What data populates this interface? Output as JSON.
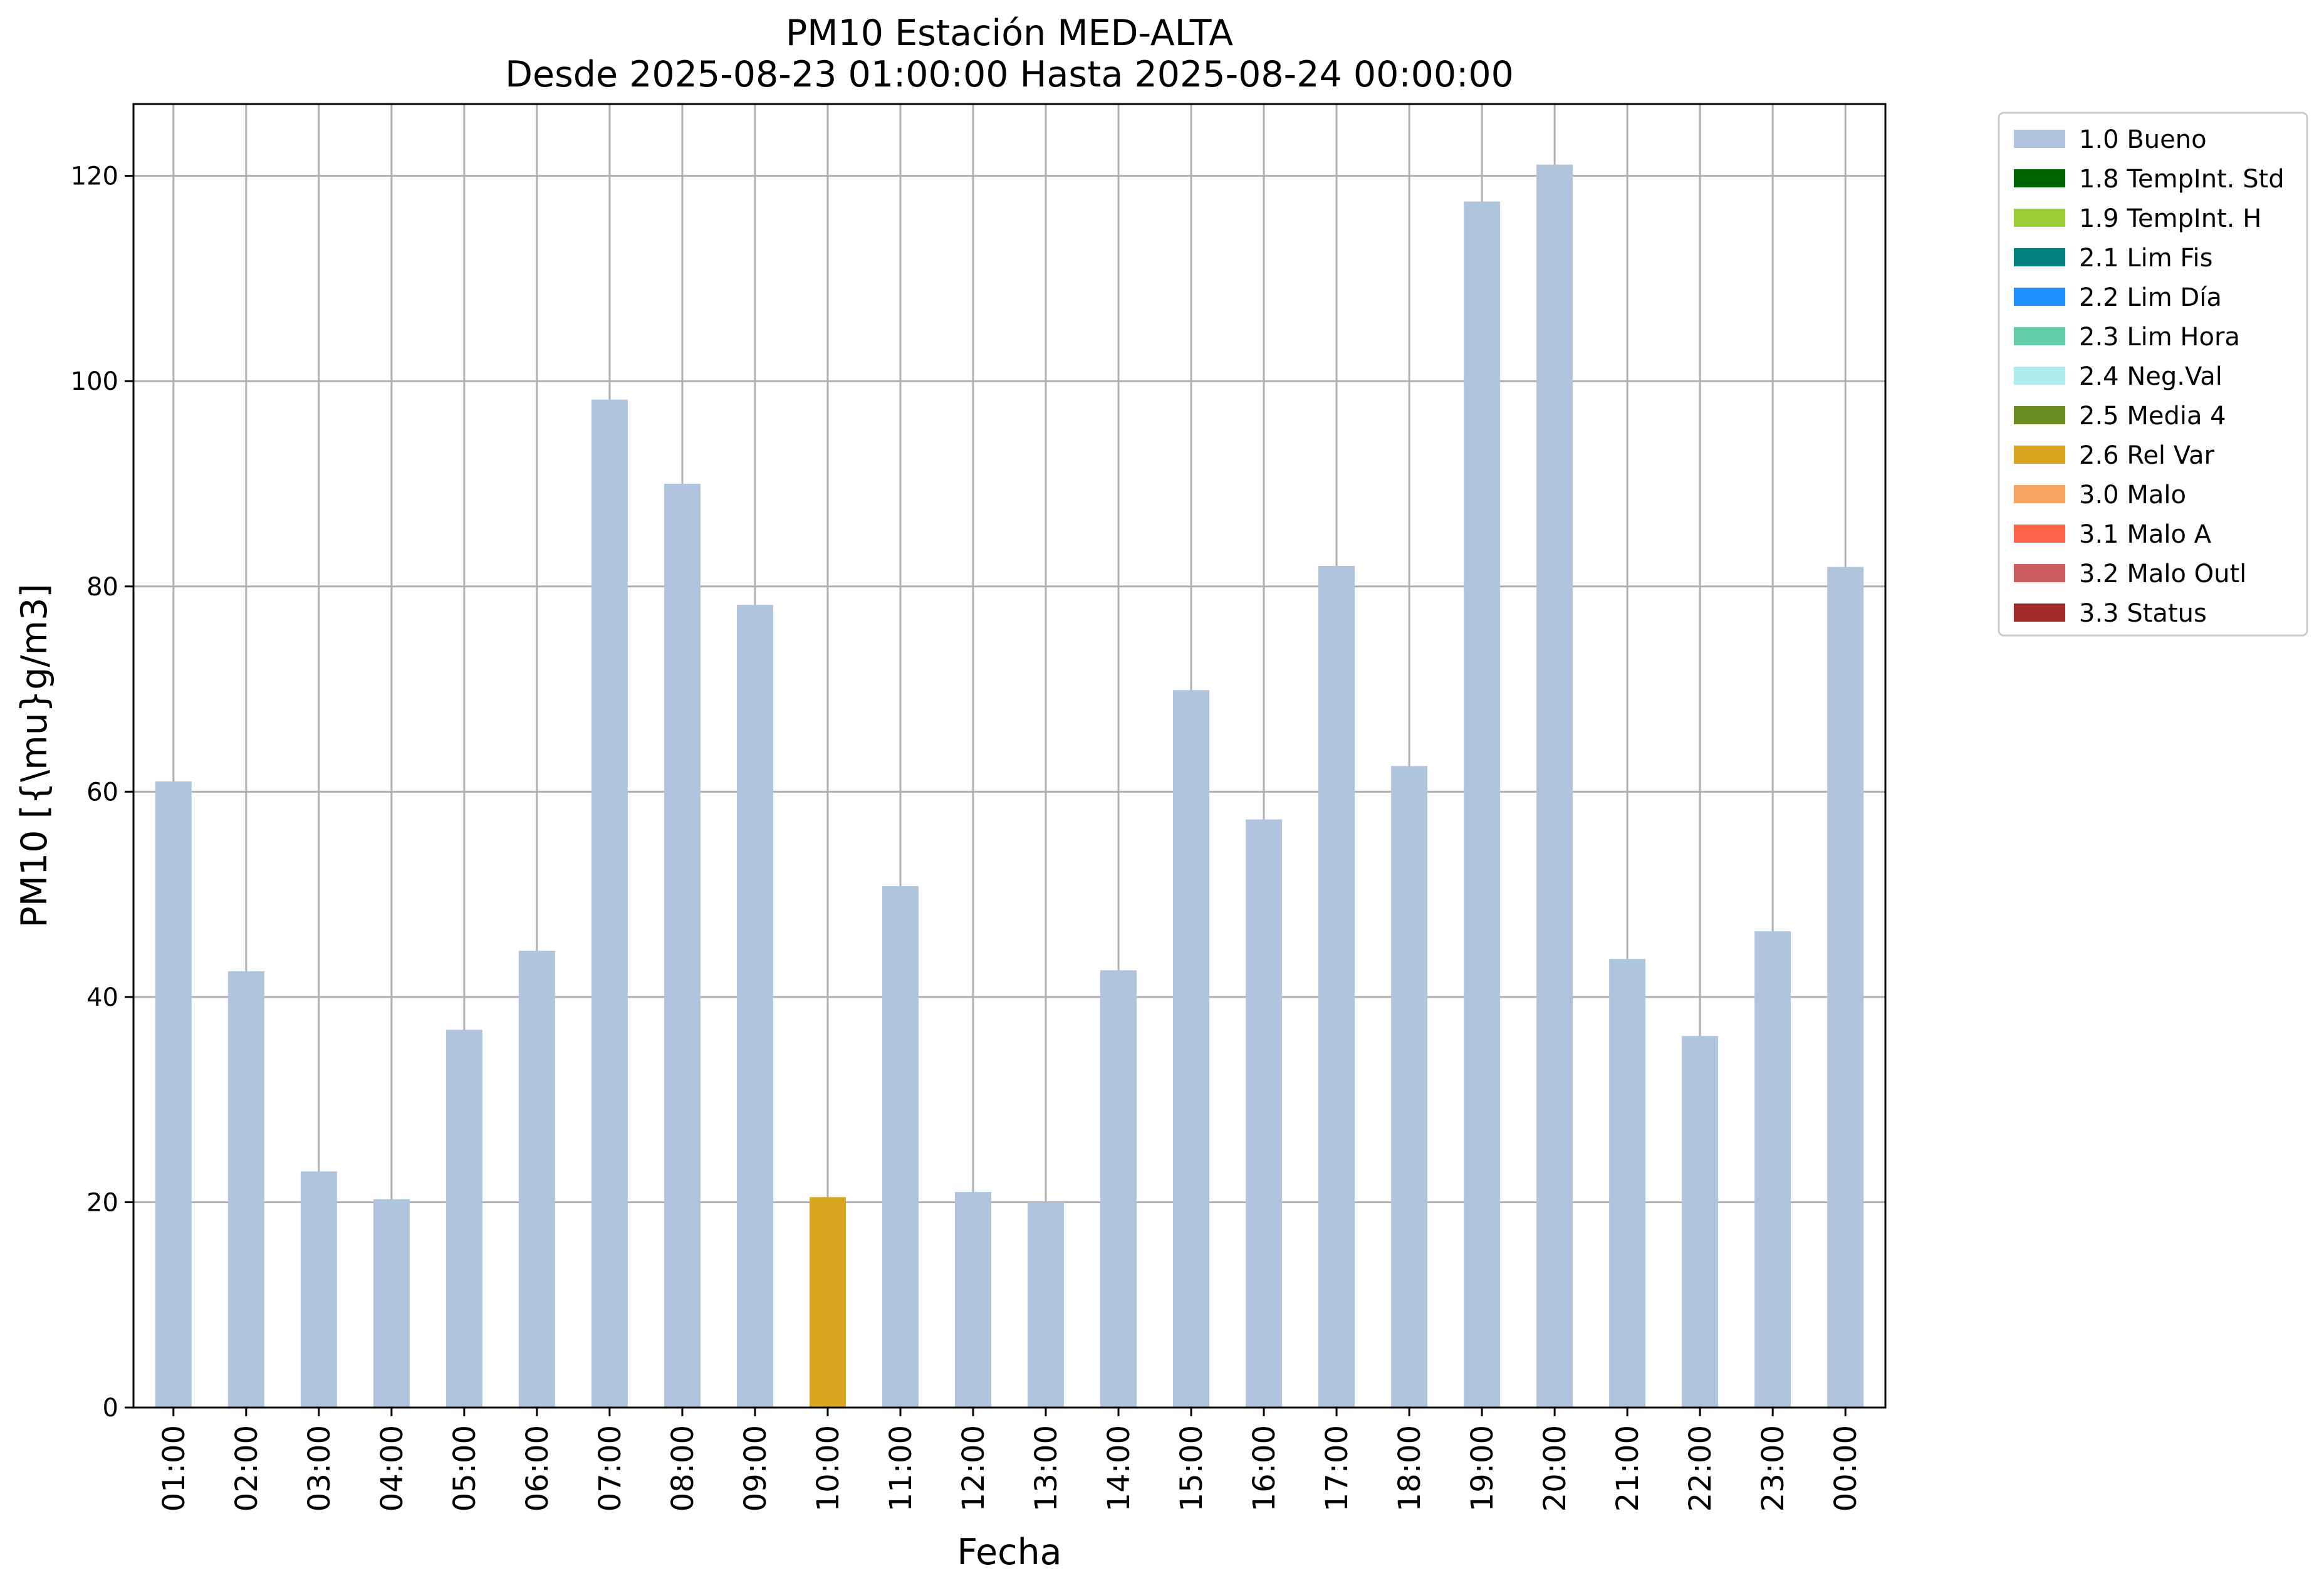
{
  "chart_data": {
    "type": "bar",
    "title": "PM10 Estación MED-ALTA",
    "subtitle": "Desde 2025-08-23 01:00:00 Hasta 2025-08-24 00:00:00",
    "xlabel": "Fecha",
    "ylabel": "PM10 [{\\mu}g/m3]",
    "ylim": [
      0,
      127
    ],
    "yticks": [
      0,
      20,
      40,
      60,
      80,
      100,
      120
    ],
    "grid": true,
    "legend_position": "outside-top-right",
    "categories": [
      "01:00",
      "02:00",
      "03:00",
      "04:00",
      "05:00",
      "06:00",
      "07:00",
      "08:00",
      "09:00",
      "10:00",
      "11:00",
      "12:00",
      "13:00",
      "14:00",
      "15:00",
      "16:00",
      "17:00",
      "18:00",
      "19:00",
      "20:00",
      "21:00",
      "22:00",
      "23:00",
      "00:00"
    ],
    "values": [
      61.0,
      42.5,
      23.0,
      20.3,
      36.8,
      44.5,
      98.2,
      90.0,
      78.2,
      20.5,
      50.8,
      21.0,
      20.0,
      42.6,
      69.9,
      57.3,
      82.0,
      62.5,
      117.5,
      121.1,
      43.7,
      36.2,
      46.4,
      81.9
    ],
    "flags": [
      "1.0 Bueno",
      "1.0 Bueno",
      "1.0 Bueno",
      "1.0 Bueno",
      "1.0 Bueno",
      "1.0 Bueno",
      "1.0 Bueno",
      "1.0 Bueno",
      "1.0 Bueno",
      "2.6 Rel Var",
      "1.0 Bueno",
      "1.0 Bueno",
      "1.0 Bueno",
      "1.0 Bueno",
      "1.0 Bueno",
      "1.0 Bueno",
      "1.0 Bueno",
      "1.0 Bueno",
      "1.0 Bueno",
      "1.0 Bueno",
      "1.0 Bueno",
      "1.0 Bueno",
      "1.0 Bueno",
      "1.0 Bueno"
    ],
    "legend": [
      {
        "label": "1.0 Bueno",
        "color": "#b0c4de"
      },
      {
        "label": "1.8 TempInt. Std",
        "color": "#006400"
      },
      {
        "label": "1.9 TempInt. H",
        "color": "#9acd32"
      },
      {
        "label": "2.1 Lim Fis",
        "color": "#008080"
      },
      {
        "label": "2.2 Lim Día",
        "color": "#1e90ff"
      },
      {
        "label": "2.3 Lim Hora",
        "color": "#66cdaa"
      },
      {
        "label": "2.4 Neg.Val",
        "color": "#afeeee"
      },
      {
        "label": "2.5 Media 4",
        "color": "#6b8e23"
      },
      {
        "label": "2.6 Rel Var",
        "color": "#daa520"
      },
      {
        "label": "3.0 Malo",
        "color": "#f4a460"
      },
      {
        "label": "3.1 Malo A",
        "color": "#ff6347"
      },
      {
        "label": "3.2 Malo Outl",
        "color": "#cd5c5c"
      },
      {
        "label": "3.3 Status",
        "color": "#a52a2a"
      }
    ]
  }
}
